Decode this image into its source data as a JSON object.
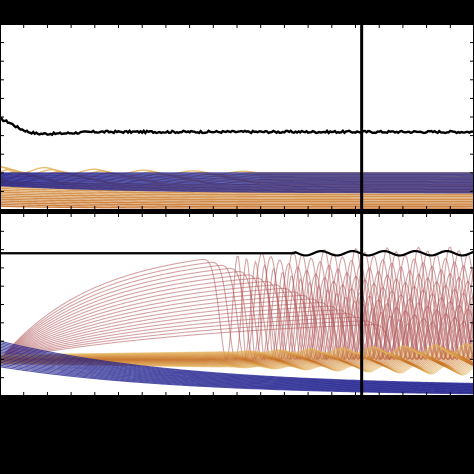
{
  "colors": {
    "background": "#000000",
    "panel": "#ffffff",
    "frame": "#000000",
    "reference_trace": "#000000",
    "blue_family": "#1c1c8c",
    "gold_family": "#e3b25c",
    "orange_family": "#c46a1e",
    "red_family": "#b0585a",
    "marker_line": "#000000"
  },
  "chart_data": [
    {
      "type": "line",
      "panel": "top",
      "title": "",
      "xlabel": "",
      "ylabel": "",
      "xlim": [
        0,
        1
      ],
      "ylim": [
        0,
        1
      ],
      "grid": false,
      "legend": "none",
      "tick_labels": [],
      "vertical_marker_x": 0.763,
      "series": [
        {
          "role": "reference",
          "color": "#000000",
          "x": [
            0.0,
            0.02,
            0.04,
            0.06,
            0.08,
            0.12,
            0.2,
            0.3,
            0.4,
            0.5,
            0.6,
            0.7,
            0.8,
            0.9,
            1.0
          ],
          "y": [
            0.49,
            0.47,
            0.44,
            0.42,
            0.41,
            0.41,
            0.42,
            0.42,
            0.42,
            0.42,
            0.42,
            0.42,
            0.42,
            0.42,
            0.42
          ]
        },
        {
          "role": "blue-family",
          "color": "#1c1c8c",
          "curves": 24,
          "start_range": [
            0.13,
            0.2
          ],
          "end_range": [
            0.09,
            0.2
          ]
        },
        {
          "role": "gold-family",
          "color": "#e3b25c",
          "curves": 22,
          "start_range": [
            0.02,
            0.22
          ],
          "end_range": [
            0.01,
            0.2
          ]
        }
      ]
    },
    {
      "type": "line",
      "panel": "bottom",
      "title": "",
      "xlabel": "",
      "ylabel": "",
      "xlim": [
        0,
        1
      ],
      "ylim": [
        0,
        1
      ],
      "grid": false,
      "legend": "none",
      "tick_labels": [],
      "vertical_marker_x": 0.763,
      "series": [
        {
          "role": "reference",
          "color": "#000000",
          "x": [
            0.0,
            0.1,
            0.2,
            0.3,
            0.4,
            0.5,
            0.6,
            0.7,
            0.8,
            0.9,
            1.0
          ],
          "y": [
            0.78,
            0.78,
            0.78,
            0.78,
            0.78,
            0.78,
            0.78,
            0.78,
            0.78,
            0.78,
            0.78
          ]
        },
        {
          "role": "red-oscillating-family",
          "color": "#b0585a",
          "curves": 20,
          "envelope_max": [
            0.44,
            0.82
          ],
          "oscillation_onset_range": [
            0.42,
            0.78
          ]
        },
        {
          "role": "orange-gold-family",
          "color": "#c46a1e",
          "curves": 30,
          "center": 0.2,
          "spread": 0.12
        },
        {
          "role": "blue-family",
          "color": "#1c1c8c",
          "curves": 18,
          "start_range": [
            0.16,
            0.3
          ],
          "end_range": [
            0.0,
            0.05
          ]
        }
      ]
    }
  ]
}
